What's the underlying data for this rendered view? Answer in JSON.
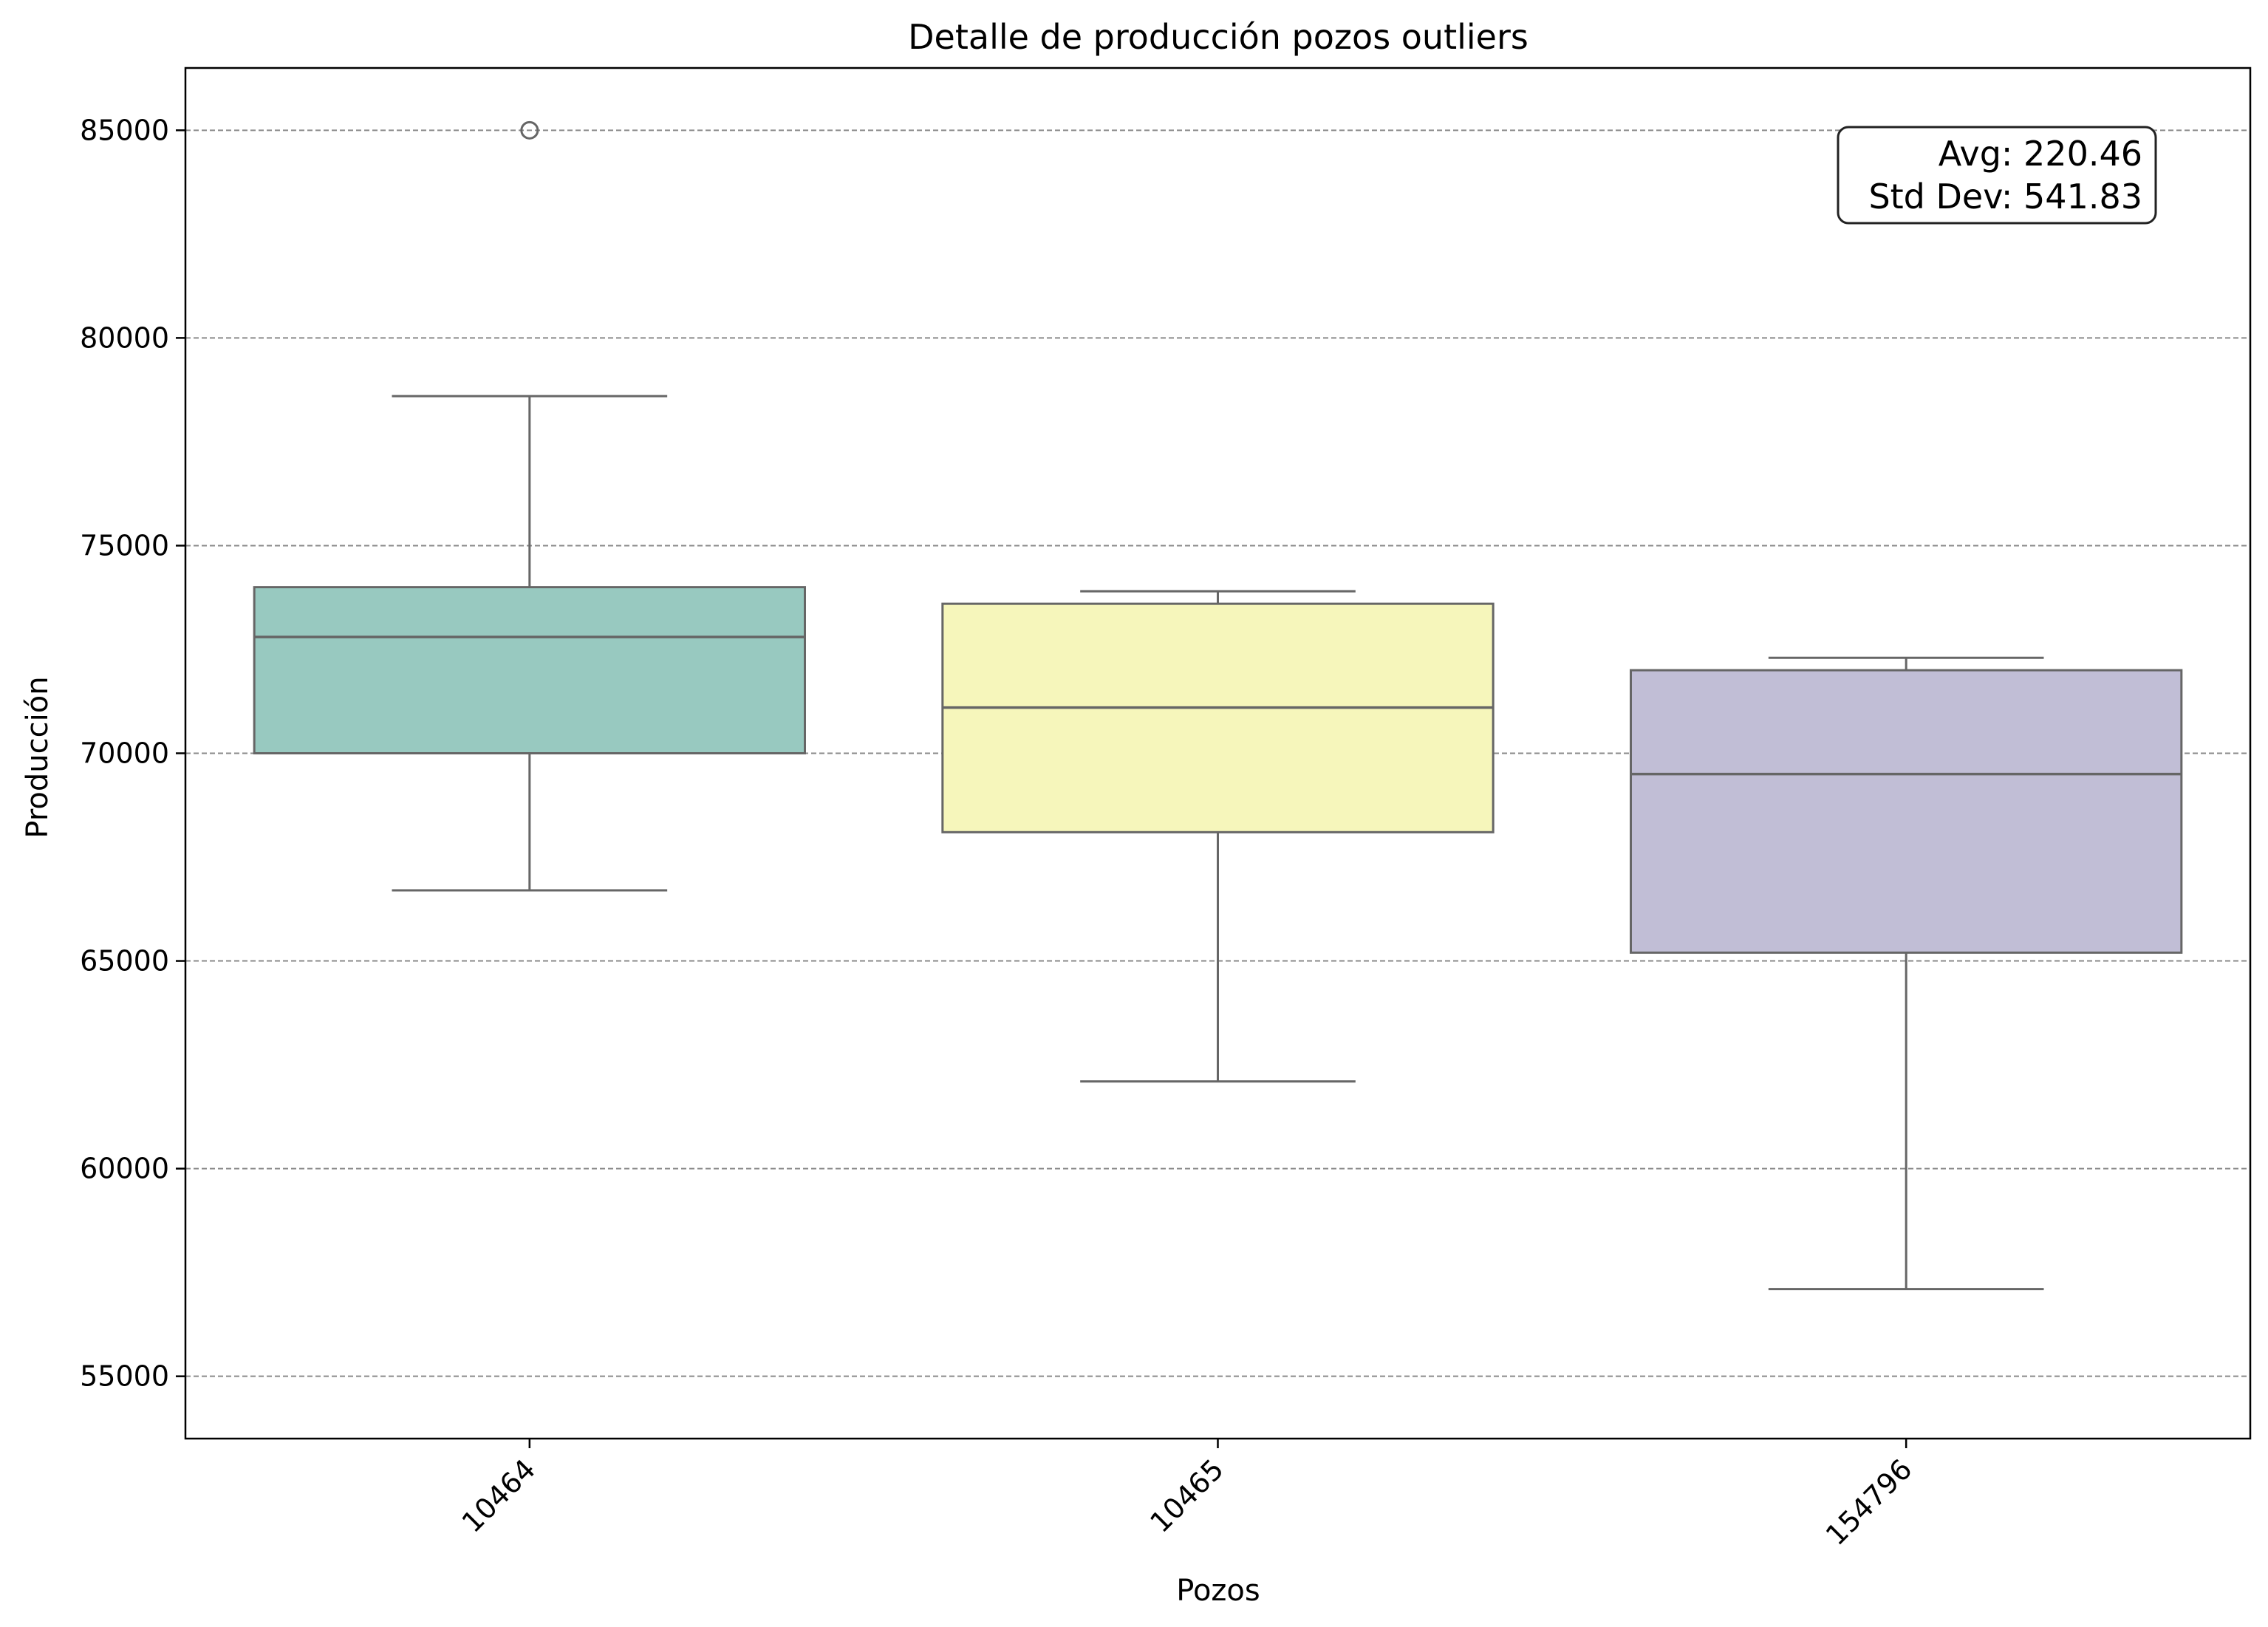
{
  "chart_data": {
    "type": "box",
    "title": "Detalle de producción pozos outliers",
    "xlabel": "Pozos",
    "ylabel": "Producción",
    "ylim": [
      53500,
      86500
    ],
    "yticks": [
      55000,
      60000,
      65000,
      70000,
      75000,
      80000,
      85000
    ],
    "ytick_labels": [
      "55000",
      "60000",
      "65000",
      "70000",
      "75000",
      "80000",
      "85000"
    ],
    "grid": "horizontal dashed",
    "categories": [
      "10464",
      "10465",
      "154796"
    ],
    "boxes": [
      {
        "category": "10464",
        "whisker_low": 66700,
        "q1": 70000,
        "median": 72800,
        "q3": 74000,
        "whisker_high": 78600,
        "outliers": [
          85000
        ],
        "color": "#98c9c0"
      },
      {
        "category": "10465",
        "whisker_low": 62100,
        "q1": 68100,
        "median": 71100,
        "q3": 73600,
        "whisker_high": 73900,
        "outliers": [],
        "color": "#f6f6bb"
      },
      {
        "category": "154796",
        "whisker_low": 57100,
        "q1": 65200,
        "median": 69500,
        "q3": 72000,
        "whisker_high": 72300,
        "outliers": [],
        "color": "#c1bed6"
      }
    ],
    "annotation": {
      "avg": "Avg: 220.46",
      "std": "Std Dev: 541.83",
      "position": "top-right"
    }
  }
}
